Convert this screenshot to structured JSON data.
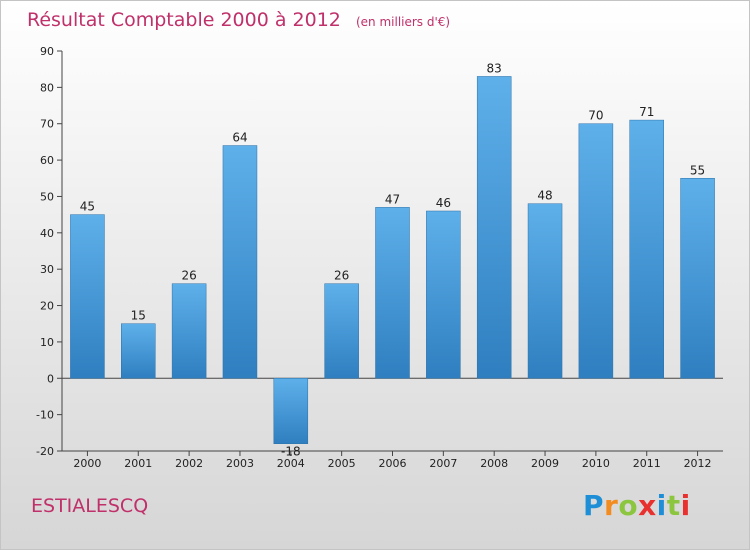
{
  "title": "Résultat Comptable 2000 à 2012",
  "unit_label": "(en milliers d'€)",
  "commune": "ESTIALESCQ",
  "logo": {
    "text": "Proxiti",
    "letters": [
      "P",
      "r",
      "o",
      "x",
      "i",
      "t",
      "i"
    ],
    "colors": [
      "#1e8fd6",
      "#f28c1e",
      "#8cc63f",
      "#e8312f",
      "#1e8fd6",
      "#8cc63f",
      "#e8312f"
    ]
  },
  "colors": {
    "title": "#c0306a",
    "bar_top": "#5eb0ea",
    "bar_bottom": "#2f7fc0"
  },
  "chart_data": {
    "type": "bar",
    "categories": [
      "2000",
      "2001",
      "2002",
      "2003",
      "2004",
      "2005",
      "2006",
      "2007",
      "2008",
      "2009",
      "2010",
      "2011",
      "2012"
    ],
    "values": [
      45,
      15,
      26,
      64,
      -18,
      26,
      47,
      46,
      83,
      48,
      70,
      71,
      55
    ],
    "ylim": [
      -20,
      90
    ],
    "yticks": [
      -20,
      -10,
      0,
      10,
      20,
      30,
      40,
      50,
      60,
      70,
      80,
      90
    ],
    "grid": false,
    "title": "Résultat Comptable 2000 à 2012",
    "xlabel": "",
    "ylabel": ""
  }
}
